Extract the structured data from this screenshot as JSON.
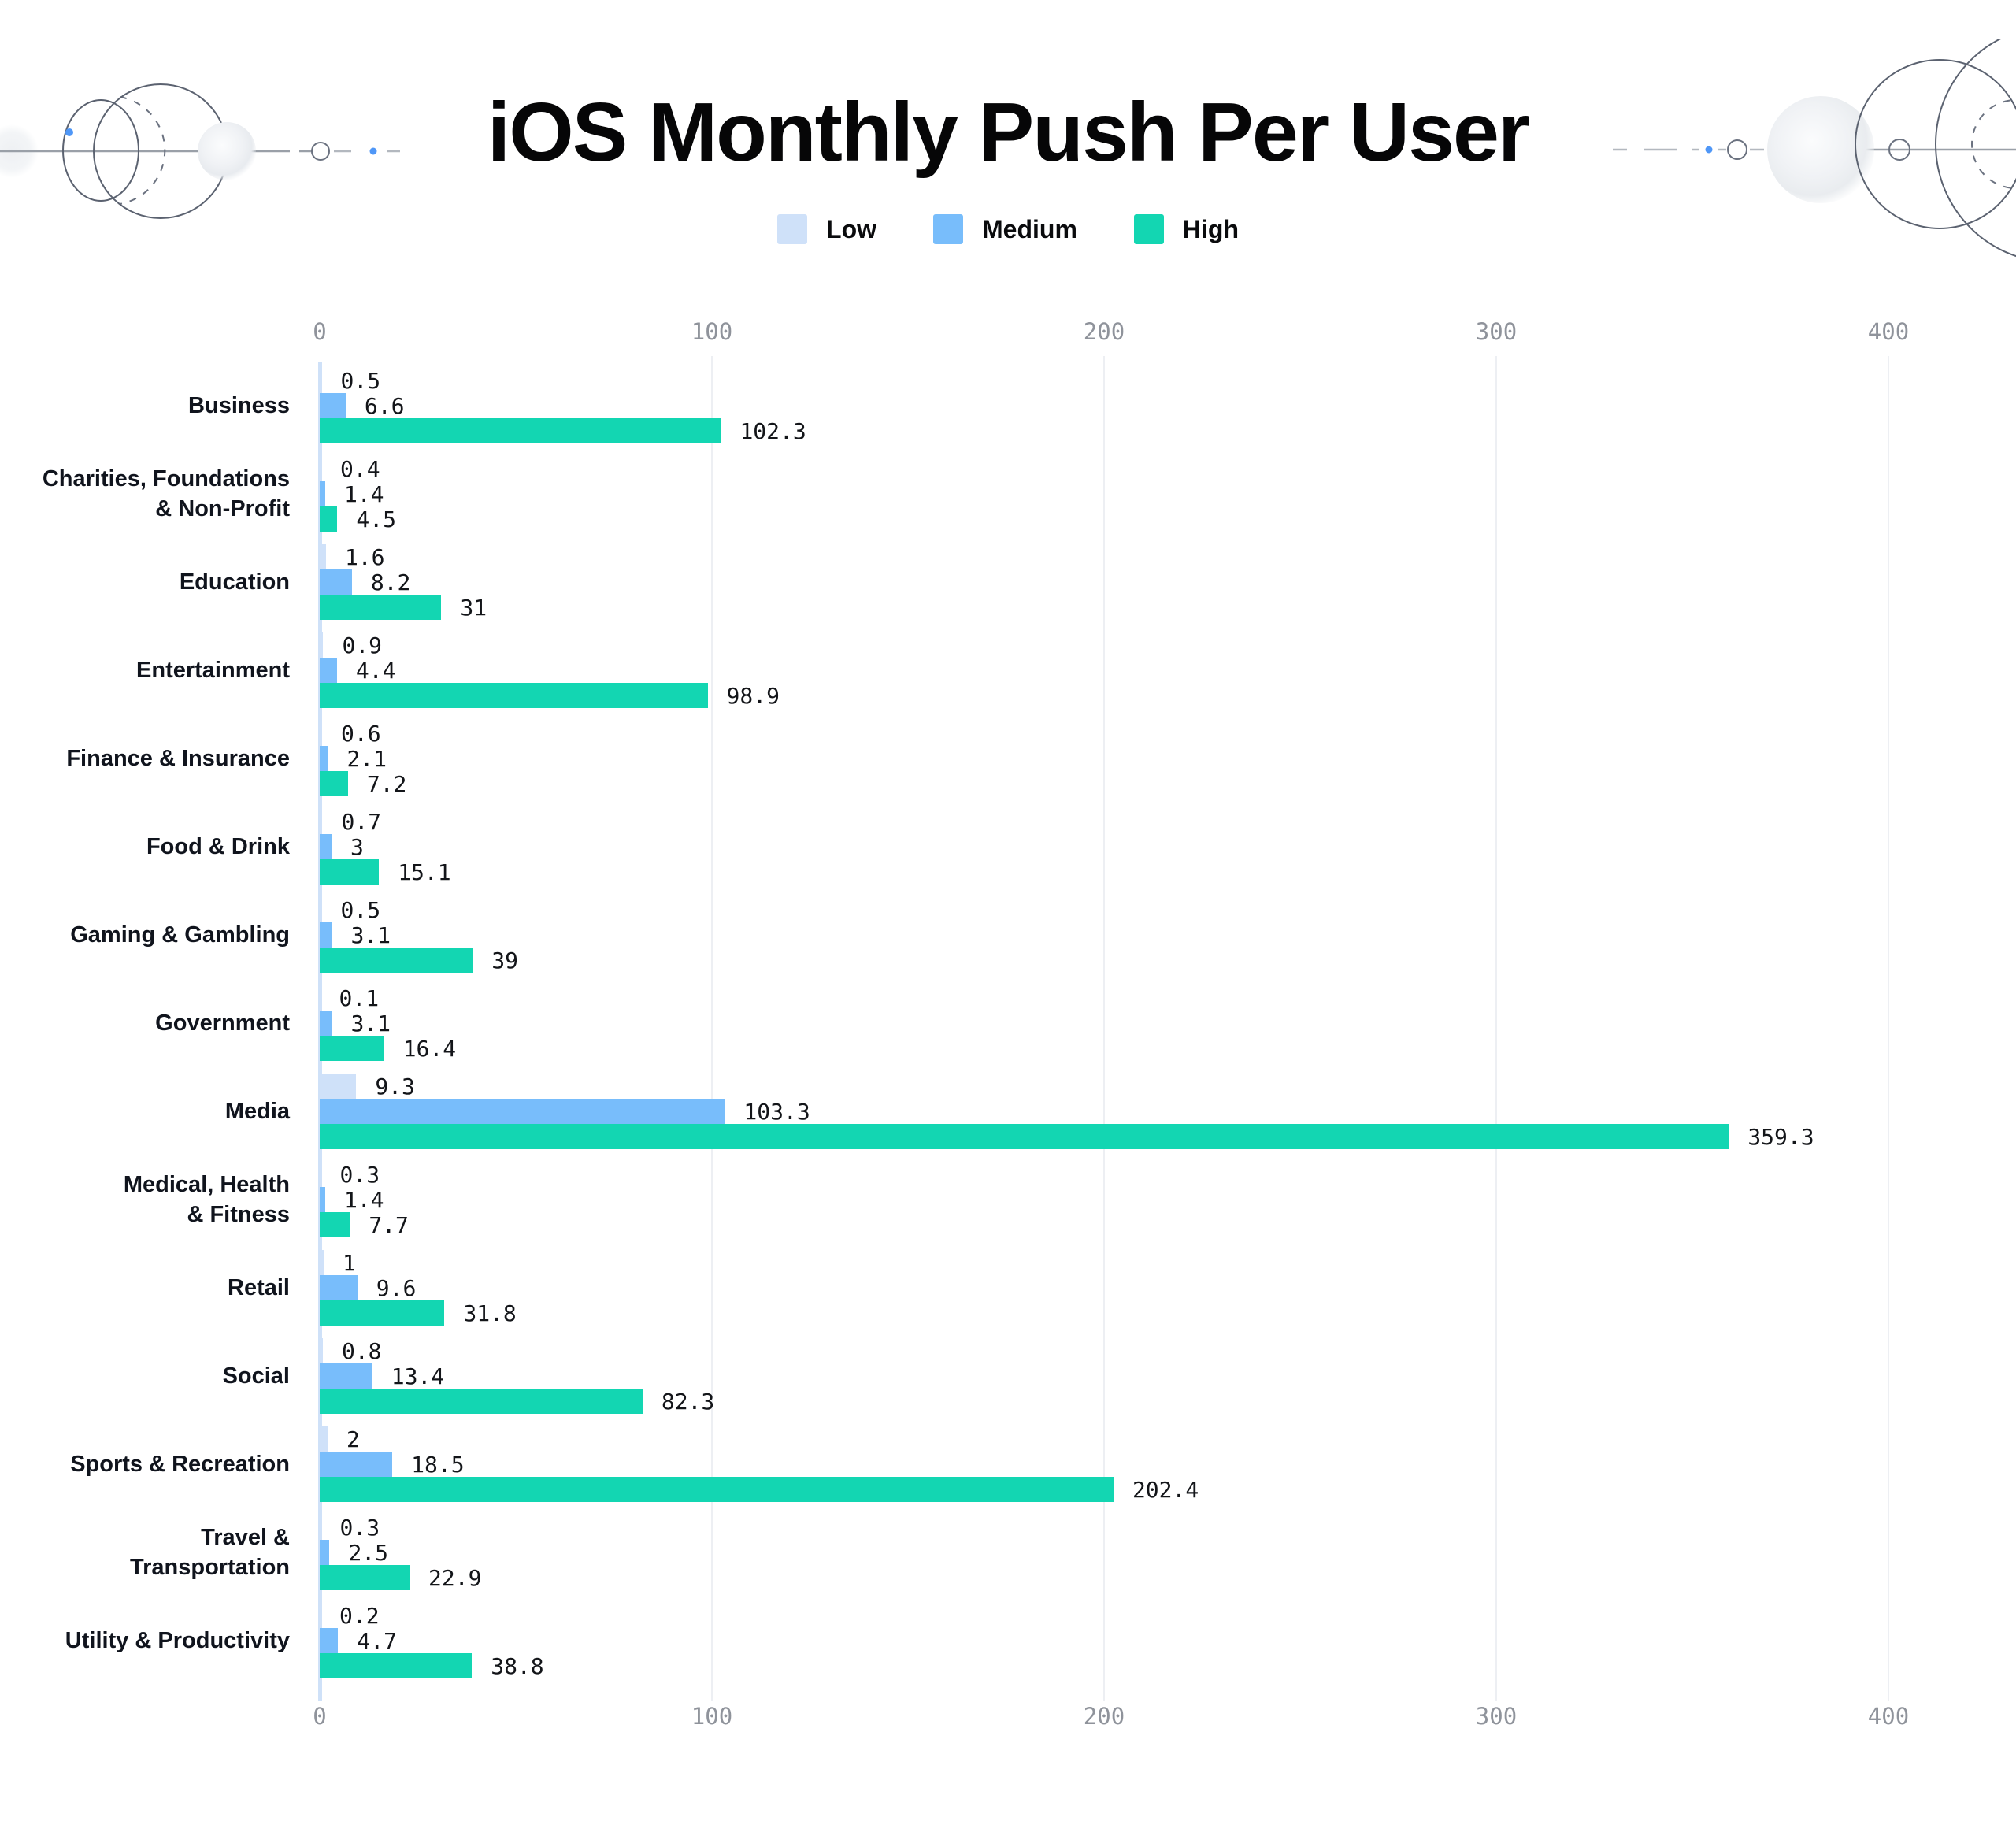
{
  "title": "iOS Monthly Push Per User",
  "legend": [
    {
      "label": "Low",
      "color": "#cfe1f9"
    },
    {
      "label": "Medium",
      "color": "#78bdfb"
    },
    {
      "label": "High",
      "color": "#13d6b2"
    }
  ],
  "colors": {
    "zero_axis": "#cfe1f8",
    "gridline": "#edeff3",
    "tick_text": "#8f939b",
    "value_text": "#131519",
    "category_text": "#10141d",
    "accent_dot": "#4f97f7"
  },
  "chart_data": {
    "type": "bar",
    "orientation": "horizontal",
    "title": "iOS Monthly Push Per User",
    "legend_position": "top",
    "grid": true,
    "x_axis": {
      "ticks": [
        0,
        100,
        200,
        300,
        400
      ],
      "min": 0,
      "max": 400,
      "shown_top_and_bottom": true
    },
    "categories": [
      {
        "label": "Business",
        "lines": [
          "Business"
        ]
      },
      {
        "label": "Charities, Foundations & Non-Profit",
        "lines": [
          "Charities, Foundations",
          "& Non-Profit"
        ]
      },
      {
        "label": "Education",
        "lines": [
          "Education"
        ]
      },
      {
        "label": "Entertainment",
        "lines": [
          "Entertainment"
        ]
      },
      {
        "label": "Finance & Insurance",
        "lines": [
          "Finance & Insurance"
        ]
      },
      {
        "label": "Food & Drink",
        "lines": [
          "Food & Drink"
        ]
      },
      {
        "label": "Gaming & Gambling",
        "lines": [
          "Gaming & Gambling"
        ]
      },
      {
        "label": "Government",
        "lines": [
          "Government"
        ]
      },
      {
        "label": "Media",
        "lines": [
          "Media"
        ]
      },
      {
        "label": "Medical, Health & Fitness",
        "lines": [
          "Medical, Health",
          "& Fitness"
        ]
      },
      {
        "label": "Retail",
        "lines": [
          "Retail"
        ]
      },
      {
        "label": "Social",
        "lines": [
          "Social"
        ]
      },
      {
        "label": "Sports & Recreation",
        "lines": [
          "Sports & Recreation"
        ]
      },
      {
        "label": "Travel & Transportation",
        "lines": [
          "Travel &",
          "Transportation"
        ]
      },
      {
        "label": "Utility & Productivity",
        "lines": [
          "Utility & Productivity"
        ]
      }
    ],
    "series": [
      {
        "name": "Low",
        "color": "#cfe1f9",
        "values": [
          0.5,
          0.4,
          1.6,
          0.9,
          0.6,
          0.7,
          0.5,
          0.1,
          9.3,
          0.3,
          1,
          0.8,
          2,
          0.3,
          0.2
        ]
      },
      {
        "name": "Medium",
        "color": "#78bdfb",
        "values": [
          6.6,
          1.4,
          8.2,
          4.4,
          2.1,
          3,
          3.1,
          3.1,
          103.3,
          1.4,
          9.6,
          13.4,
          18.5,
          2.5,
          4.7
        ]
      },
      {
        "name": "High",
        "color": "#13d6b2",
        "values": [
          102.3,
          4.5,
          31,
          98.9,
          7.2,
          15.1,
          39,
          16.4,
          359.3,
          7.7,
          31.8,
          82.3,
          202.4,
          22.9,
          38.8
        ]
      }
    ]
  }
}
